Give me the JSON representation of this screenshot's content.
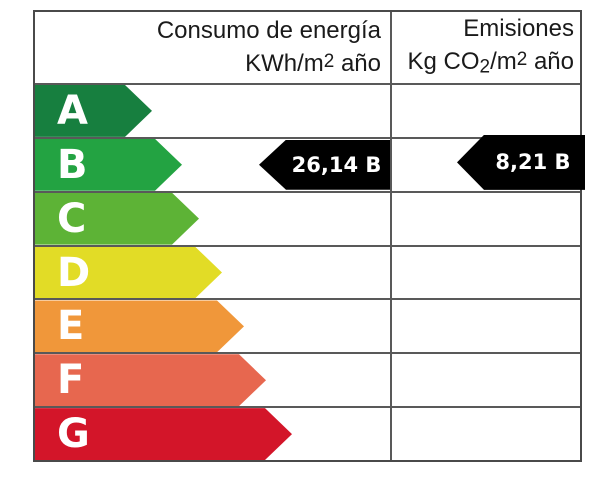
{
  "header": {
    "consumption": {
      "title": "Consumo de energía",
      "unit_prefix": "KWh/m",
      "unit_sup": "2",
      "unit_suffix": " año"
    },
    "emissions": {
      "title": "Emisiones",
      "unit_prefix": "Kg CO",
      "unit_sub": "2",
      "unit_mid": "/m",
      "unit_sup": "2",
      "unit_suffix": " año"
    }
  },
  "chart_data": {
    "type": "energy-rating-label",
    "title_left_column": "Consumo de energía KWh/m2 año",
    "title_right_column": "Emisiones Kg CO2/m2 año",
    "scale": [
      {
        "letter": "A",
        "color": "#177f3f"
      },
      {
        "letter": "B",
        "color": "#23a342"
      },
      {
        "letter": "C",
        "color": "#5db336"
      },
      {
        "letter": "D",
        "color": "#e2dc26"
      },
      {
        "letter": "E",
        "color": "#f0973a"
      },
      {
        "letter": "F",
        "color": "#e7674f"
      },
      {
        "letter": "G",
        "color": "#d31529"
      }
    ],
    "consumption": {
      "value": 26.14,
      "rating": "B",
      "label": "26,14 B",
      "unit": "KWh/m2 año"
    },
    "emissions": {
      "value": 8.21,
      "rating": "B",
      "label": "8,21 B",
      "unit": "Kg CO2/m2 año"
    },
    "value_marker_color": "#000000"
  }
}
